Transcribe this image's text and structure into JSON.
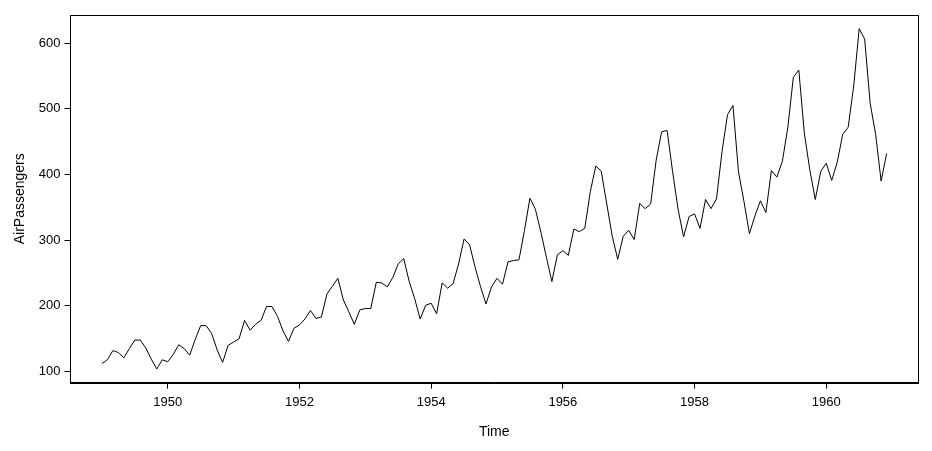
{
  "chart_data": {
    "type": "line",
    "x_label": "Time",
    "y_label": "AirPassengers",
    "color": "#000000",
    "grid": false,
    "xlim": [
      1948.523,
      1961.393
    ],
    "xticks": [
      1950,
      1952,
      1954,
      1956,
      1958,
      1960
    ],
    "ylim": [
      83.28,
      642.72
    ],
    "yticks": [
      100,
      200,
      300,
      400,
      500,
      600
    ],
    "x": [
      1949,
      1949.083,
      1949.167,
      1949.25,
      1949.333,
      1949.417,
      1949.5,
      1949.583,
      1949.667,
      1949.75,
      1949.833,
      1949.917,
      1950,
      1950.083,
      1950.167,
      1950.25,
      1950.333,
      1950.417,
      1950.5,
      1950.583,
      1950.667,
      1950.75,
      1950.833,
      1950.917,
      1951,
      1951.083,
      1951.167,
      1951.25,
      1951.333,
      1951.417,
      1951.5,
      1951.583,
      1951.667,
      1951.75,
      1951.833,
      1951.917,
      1952,
      1952.083,
      1952.167,
      1952.25,
      1952.333,
      1952.417,
      1952.5,
      1952.583,
      1952.667,
      1952.75,
      1952.833,
      1952.917,
      1953,
      1953.083,
      1953.167,
      1953.25,
      1953.333,
      1953.417,
      1953.5,
      1953.583,
      1953.667,
      1953.75,
      1953.833,
      1953.917,
      1954,
      1954.083,
      1954.167,
      1954.25,
      1954.333,
      1954.417,
      1954.5,
      1954.583,
      1954.667,
      1954.75,
      1954.833,
      1954.917,
      1955,
      1955.083,
      1955.167,
      1955.25,
      1955.333,
      1955.417,
      1955.5,
      1955.583,
      1955.667,
      1955.75,
      1955.833,
      1955.917,
      1956,
      1956.083,
      1956.167,
      1956.25,
      1956.333,
      1956.417,
      1956.5,
      1956.583,
      1956.667,
      1956.75,
      1956.833,
      1956.917,
      1957,
      1957.083,
      1957.167,
      1957.25,
      1957.333,
      1957.417,
      1957.5,
      1957.583,
      1957.667,
      1957.75,
      1957.833,
      1957.917,
      1958,
      1958.083,
      1958.167,
      1958.25,
      1958.333,
      1958.417,
      1958.5,
      1958.583,
      1958.667,
      1958.75,
      1958.833,
      1958.917,
      1959,
      1959.083,
      1959.167,
      1959.25,
      1959.333,
      1959.417,
      1959.5,
      1959.583,
      1959.667,
      1959.75,
      1959.833,
      1959.917,
      1960,
      1960.083,
      1960.167,
      1960.25,
      1960.333,
      1960.417,
      1960.5,
      1960.583,
      1960.667,
      1960.75,
      1960.833,
      1960.917
    ],
    "values": [
      112,
      118,
      132,
      129,
      121,
      135,
      148,
      148,
      136,
      119,
      104,
      118,
      115,
      126,
      141,
      135,
      125,
      149,
      170,
      170,
      158,
      133,
      114,
      140,
      145,
      150,
      178,
      163,
      172,
      178,
      199,
      199,
      184,
      162,
      146,
      166,
      171,
      180,
      193,
      181,
      183,
      218,
      230,
      242,
      209,
      191,
      172,
      194,
      196,
      196,
      236,
      235,
      229,
      243,
      264,
      272,
      237,
      211,
      180,
      201,
      204,
      188,
      235,
      227,
      234,
      264,
      302,
      293,
      259,
      229,
      203,
      229,
      242,
      233,
      267,
      269,
      270,
      315,
      364,
      347,
      312,
      274,
      237,
      278,
      284,
      277,
      317,
      313,
      318,
      374,
      413,
      405,
      355,
      306,
      271,
      306,
      315,
      301,
      356,
      348,
      355,
      422,
      465,
      467,
      404,
      347,
      305,
      336,
      340,
      318,
      362,
      348,
      363,
      435,
      491,
      505,
      404,
      359,
      310,
      337,
      360,
      342,
      406,
      396,
      420,
      472,
      548,
      559,
      463,
      407,
      362,
      405,
      417,
      391,
      419,
      461,
      472,
      535,
      622,
      606,
      508,
      461,
      390,
      432
    ]
  }
}
